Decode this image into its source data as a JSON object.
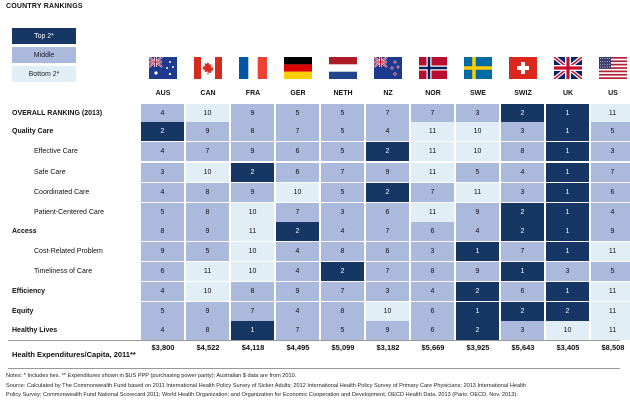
{
  "title": "COUNTRY RANKINGS",
  "legend": {
    "top": "Top 2*",
    "middle": "Middle",
    "bottom": "Bottom 2*"
  },
  "countries": [
    {
      "code": "AUS",
      "flag": "australia-flag"
    },
    {
      "code": "CAN",
      "flag": "canada-flag"
    },
    {
      "code": "FRA",
      "flag": "france-flag"
    },
    {
      "code": "GER",
      "flag": "germany-flag"
    },
    {
      "code": "NETH",
      "flag": "netherlands-flag"
    },
    {
      "code": "NZ",
      "flag": "new-zealand-flag"
    },
    {
      "code": "NOR",
      "flag": "norway-flag"
    },
    {
      "code": "SWE",
      "flag": "sweden-flag"
    },
    {
      "code": "SWIZ",
      "flag": "switzerland-flag"
    },
    {
      "code": "UK",
      "flag": "uk-flag"
    },
    {
      "code": "US",
      "flag": "us-flag"
    }
  ],
  "rows": [
    {
      "label": "OVERALL RANKING (2013)",
      "bold": true,
      "indent": false,
      "values": [
        4,
        10,
        9,
        5,
        5,
        7,
        7,
        3,
        2,
        1,
        11
      ],
      "tiers": [
        "m",
        "b",
        "m",
        "m",
        "m",
        "m",
        "m",
        "m",
        "t",
        "t",
        "b"
      ]
    },
    {
      "label": "Quality Care",
      "bold": true,
      "indent": false,
      "values": [
        2,
        9,
        8,
        7,
        5,
        4,
        11,
        10,
        3,
        1,
        5
      ],
      "tiers": [
        "t",
        "m",
        "m",
        "m",
        "m",
        "m",
        "b",
        "b",
        "m",
        "t",
        "m"
      ]
    },
    {
      "label": "Effective Care",
      "bold": false,
      "indent": true,
      "values": [
        4,
        7,
        9,
        6,
        5,
        2,
        11,
        10,
        8,
        1,
        3
      ],
      "tiers": [
        "m",
        "m",
        "m",
        "m",
        "m",
        "t",
        "b",
        "b",
        "m",
        "t",
        "m"
      ]
    },
    {
      "label": "Safe Care",
      "bold": false,
      "indent": true,
      "values": [
        3,
        10,
        2,
        6,
        7,
        9,
        11,
        5,
        4,
        1,
        7
      ],
      "tiers": [
        "m",
        "b",
        "t",
        "m",
        "m",
        "m",
        "b",
        "m",
        "m",
        "t",
        "m"
      ]
    },
    {
      "label": "Coordinated Care",
      "bold": false,
      "indent": true,
      "values": [
        4,
        8,
        9,
        10,
        5,
        2,
        7,
        11,
        3,
        1,
        6
      ],
      "tiers": [
        "m",
        "m",
        "m",
        "b",
        "m",
        "t",
        "m",
        "b",
        "m",
        "t",
        "m"
      ]
    },
    {
      "label": "Patient-Centered Care",
      "bold": false,
      "indent": true,
      "values": [
        5,
        8,
        10,
        7,
        3,
        6,
        11,
        9,
        2,
        1,
        4
      ],
      "tiers": [
        "m",
        "m",
        "b",
        "m",
        "m",
        "m",
        "b",
        "m",
        "t",
        "t",
        "m"
      ]
    },
    {
      "label": "Access",
      "bold": true,
      "indent": false,
      "values": [
        8,
        9,
        11,
        2,
        4,
        7,
        6,
        4,
        2,
        1,
        9
      ],
      "tiers": [
        "m",
        "m",
        "b",
        "t",
        "m",
        "m",
        "m",
        "m",
        "t",
        "t",
        "m"
      ]
    },
    {
      "label": "Cost-Related Problem",
      "bold": false,
      "indent": true,
      "values": [
        9,
        5,
        10,
        4,
        8,
        6,
        3,
        1,
        7,
        1,
        11
      ],
      "tiers": [
        "m",
        "m",
        "b",
        "m",
        "m",
        "m",
        "m",
        "t",
        "m",
        "t",
        "b"
      ]
    },
    {
      "label": "Timeliness of Care",
      "bold": false,
      "indent": true,
      "values": [
        6,
        11,
        10,
        4,
        2,
        7,
        8,
        9,
        1,
        3,
        5
      ],
      "tiers": [
        "m",
        "b",
        "b",
        "m",
        "t",
        "m",
        "m",
        "m",
        "t",
        "m",
        "m"
      ]
    },
    {
      "label": "Efficiency",
      "bold": true,
      "indent": false,
      "values": [
        4,
        10,
        8,
        9,
        7,
        3,
        4,
        2,
        6,
        1,
        11
      ],
      "tiers": [
        "m",
        "b",
        "m",
        "m",
        "m",
        "m",
        "m",
        "t",
        "m",
        "t",
        "b"
      ]
    },
    {
      "label": "Equity",
      "bold": true,
      "indent": false,
      "values": [
        5,
        9,
        7,
        4,
        8,
        10,
        6,
        1,
        2,
        2,
        11
      ],
      "tiers": [
        "m",
        "m",
        "m",
        "m",
        "m",
        "b",
        "m",
        "t",
        "t",
        "t",
        "b"
      ]
    },
    {
      "label": "Healthy Lives",
      "bold": true,
      "indent": false,
      "values": [
        4,
        8,
        1,
        7,
        5,
        9,
        6,
        2,
        3,
        10,
        11
      ],
      "tiers": [
        "m",
        "m",
        "t",
        "m",
        "m",
        "m",
        "m",
        "t",
        "m",
        "b",
        "b"
      ]
    }
  ],
  "expenditures": {
    "label": "Health Expenditures/Capita, 2011**",
    "values": [
      "$3,800",
      "$4,522",
      "$4,118",
      "$4,495",
      "$5,099",
      "$3,182",
      "$5,669",
      "$3,925",
      "$5,643",
      "$3,405",
      "$8,508"
    ]
  },
  "notes": {
    "line1": "Notes: * Includes ties. ** Expenditures shown in $US PPP (purchasing power parity); Australian $ data are from 2010.",
    "line2": "Source: Calculated by The Commonwealth Fund based on 2011 International Health Policy Survey of Sicker Adults; 2012 International Health Policy Survey of Primary Care Physicians; 2013 International Health",
    "line3": "Policy Survey; Commonwealth Fund National Scorecard 2011; World Health Organization; and Organization for Economic Cooperation and Development, OECD Health Data, 2013 (Paris: OECD, Nov. 2013)."
  },
  "colors": {
    "top": "#163663",
    "middle": "#aab9dc",
    "bottom": "#e1eef6"
  }
}
